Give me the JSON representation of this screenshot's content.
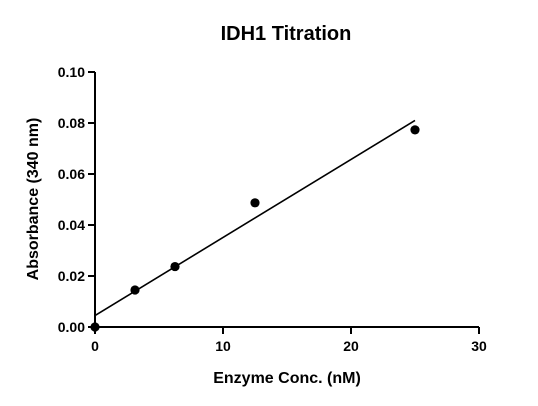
{
  "chart_data": {
    "type": "scatter",
    "title": "IDH1 Titration",
    "xlabel": "Enzyme Conc. (nM)",
    "ylabel": "Absorbance (340 nm)",
    "xlim": [
      0,
      30
    ],
    "ylim": [
      0,
      0.1
    ],
    "x_ticks": [
      "0",
      "10",
      "20",
      "30"
    ],
    "y_ticks": [
      "0.00",
      "0.02",
      "0.04",
      "0.06",
      "0.08",
      "0.10"
    ],
    "grid": false,
    "legend": "none",
    "series": [
      {
        "x": [
          0,
          3.125,
          6.25,
          12.5,
          25
        ],
        "y": [
          0.0,
          0.0145,
          0.0237,
          0.0487,
          0.0773
        ]
      }
    ],
    "fit_line": {
      "x": [
        0,
        25
      ],
      "y": [
        0.0045,
        0.081
      ]
    }
  }
}
